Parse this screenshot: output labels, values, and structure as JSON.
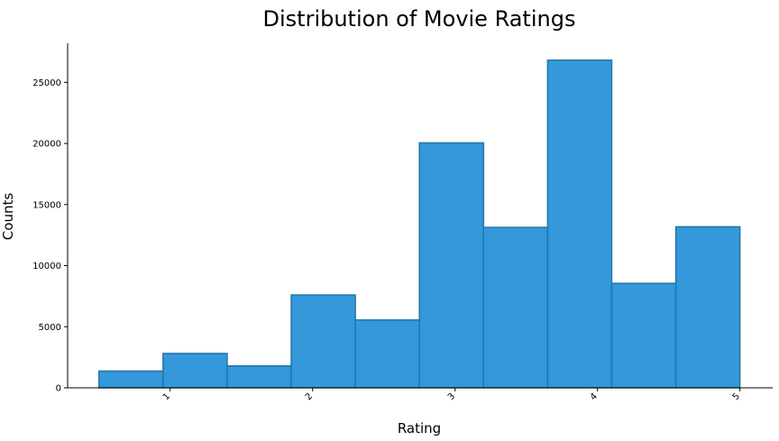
{
  "chart_data": {
    "type": "bar",
    "title": "Distribution of Movie Ratings",
    "xlabel": "Rating",
    "ylabel": "Counts",
    "x_bin_edges": [
      0.5,
      0.95,
      1.4,
      1.85,
      2.3,
      2.75,
      3.2,
      3.65,
      4.1,
      4.55,
      5.0
    ],
    "values": [
      1370,
      2810,
      1790,
      7600,
      5550,
      20050,
      13130,
      26820,
      8550,
      13180
    ],
    "xlim": [
      0.28,
      5.23
    ],
    "ylim": [
      0,
      28200
    ],
    "x_ticks": [
      "1",
      "2",
      "3",
      "4",
      "5"
    ],
    "y_ticks": [
      "0",
      "5000",
      "10000",
      "15000",
      "20000",
      "25000"
    ],
    "grid": false,
    "legend": "none",
    "bar_color": "#3498db",
    "bar_edge_color": "#2775a6"
  }
}
